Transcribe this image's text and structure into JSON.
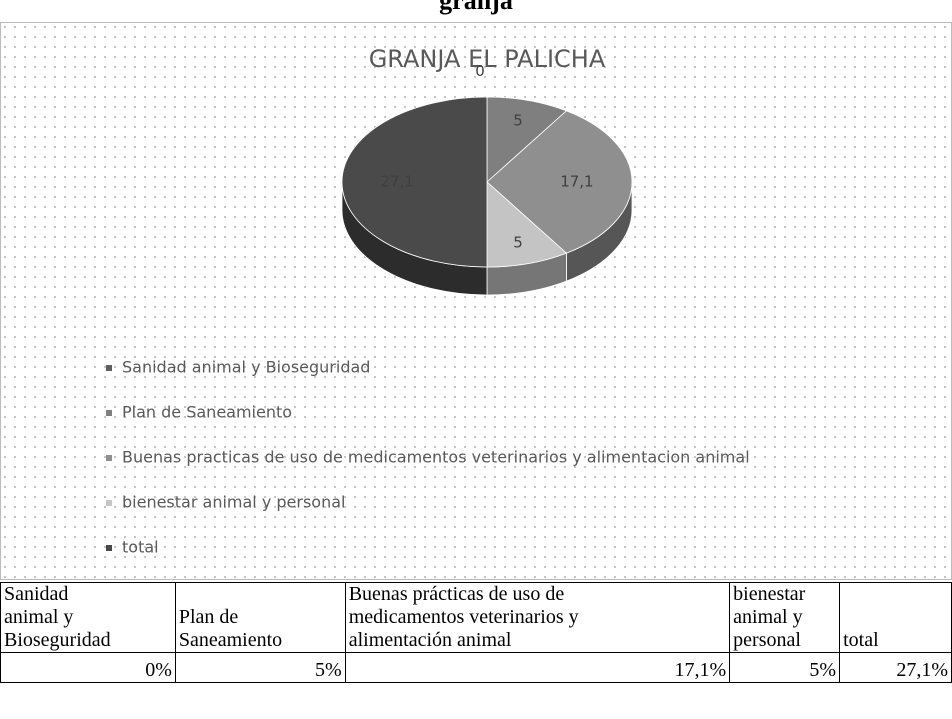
{
  "heading": "granja",
  "chart_data": {
    "type": "pie",
    "title": "GRANJA EL PALICHA",
    "categories": [
      "Sanidad animal y Bioseguridad",
      "Plan de Saneamiento",
      "Buenas practicas de uso de medicamentos veterinarios y alimentacion animal",
      "bienestar animal y personal",
      "total"
    ],
    "values": [
      0,
      5,
      17.1,
      5,
      27.1
    ],
    "value_labels": [
      "0",
      "5",
      "17,1",
      "5",
      "27,1"
    ],
    "colors": [
      "#5f5f5f",
      "#7f7f7f",
      "#8f8f8f",
      "#c4c4c4",
      "#4a4a4a"
    ]
  },
  "table": {
    "header": [
      "Sanidad\nanimal y\nBioseguridad",
      "Plan de\nSaneamiento",
      "Buenas prácticas de uso de\nmedicamentos veterinarios y\nalimentación animal",
      "bienestar\nanimal y\npersonal",
      "total"
    ],
    "rows": [
      [
        "0%",
        "5%",
        "17,1%",
        "5%",
        "27,1%"
      ]
    ]
  }
}
